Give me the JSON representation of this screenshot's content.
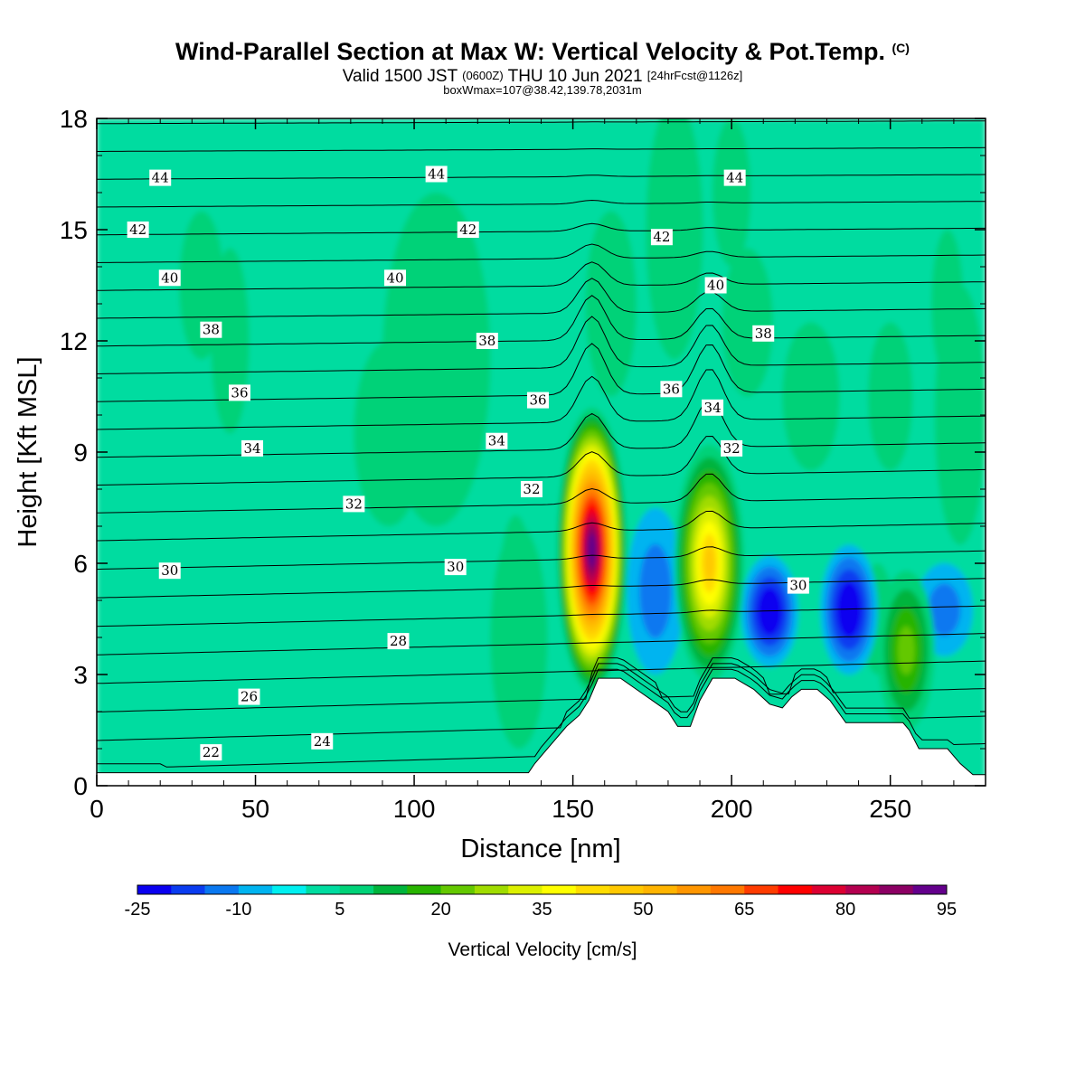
{
  "titles": {
    "main": "Wind-Parallel Section at Max W: Vertical Velocity & Pot.Temp.",
    "main_mark": "(C)",
    "valid_a": "Valid 1500 JST",
    "valid_b": "(0600Z)",
    "valid_c": "THU 10 Jun 2021",
    "valid_d": "[24hrFcst@1126z]",
    "box": "boxWmax=107@38.42,139.78,2031m"
  },
  "chart_data": {
    "type": "heatmap",
    "xlabel": "Distance [nm]",
    "ylabel": "Height [Kft MSL]",
    "xlim": [
      0,
      280
    ],
    "ylim": [
      0,
      18
    ],
    "x_ticks": [
      "0",
      "50",
      "100",
      "150",
      "200",
      "250"
    ],
    "y_ticks": [
      "0",
      "3",
      "6",
      "9",
      "12",
      "15",
      "18"
    ],
    "colorbar": {
      "label": "Vertical Velocity [cm/s]",
      "tick_labels": [
        "-25",
        "-10",
        "5",
        "20",
        "35",
        "50",
        "65",
        "80",
        "95"
      ],
      "levels": [
        -25,
        -20,
        -15,
        -10,
        -5,
        0,
        5,
        10,
        15,
        20,
        25,
        30,
        35,
        40,
        45,
        50,
        55,
        60,
        65,
        70,
        75,
        80,
        85,
        90,
        95
      ],
      "colors": [
        "#0a00f0",
        "#0a3cf0",
        "#0a78f0",
        "#00b4f0",
        "#00f0f0",
        "#00dca0",
        "#00d278",
        "#00b43c",
        "#28b400",
        "#64c800",
        "#a0dc00",
        "#dcf000",
        "#ffff00",
        "#ffdc00",
        "#ffc800",
        "#ffb400",
        "#ff9600",
        "#ff7800",
        "#ff3c00",
        "#ff0000",
        "#dc0032",
        "#b40050",
        "#8c0064",
        "#64008c"
      ]
    },
    "updrafts": [
      {
        "x": 156,
        "base_kft": 2.5,
        "top_kft": 10.2,
        "w_max": 95
      },
      {
        "x": 193,
        "base_kft": 2.8,
        "top_kft": 9.2,
        "w_max": 45
      }
    ],
    "downdrafts": [
      {
        "x": 176,
        "base_kft": 3.0,
        "top_kft": 7.5,
        "w_min": -12
      },
      {
        "x": 212,
        "base_kft": 3.2,
        "top_kft": 6.2,
        "w_min": -25
      },
      {
        "x": 237,
        "base_kft": 3.0,
        "top_kft": 6.5,
        "w_min": -25
      },
      {
        "x": 267,
        "base_kft": 3.5,
        "top_kft": 6.0,
        "w_min": -12
      }
    ],
    "weak_updrafts": [
      {
        "x": 255,
        "base_kft": 1.5,
        "top_kft": 5.8,
        "w_max": 20
      },
      {
        "x": 133,
        "base_kft": 1.0,
        "top_kft": 7.0,
        "w_max": 8
      }
    ],
    "terrain": [
      [
        0,
        0.35
      ],
      [
        136,
        0.35
      ],
      [
        138,
        0.6
      ],
      [
        141,
        0.9
      ],
      [
        144,
        1.2
      ],
      [
        148,
        1.6
      ],
      [
        152,
        1.9
      ],
      [
        155,
        2.3
      ],
      [
        158,
        2.9
      ],
      [
        165,
        2.9
      ],
      [
        170,
        2.6
      ],
      [
        175,
        2.3
      ],
      [
        180,
        2.0
      ],
      [
        183,
        1.6
      ],
      [
        187,
        1.6
      ],
      [
        190,
        2.3
      ],
      [
        194,
        2.9
      ],
      [
        201,
        2.9
      ],
      [
        207,
        2.6
      ],
      [
        212,
        2.2
      ],
      [
        216,
        2.1
      ],
      [
        219,
        2.4
      ],
      [
        222,
        2.6
      ],
      [
        227,
        2.6
      ],
      [
        231,
        2.3
      ],
      [
        236,
        1.7
      ],
      [
        254,
        1.7
      ],
      [
        256,
        1.5
      ],
      [
        259,
        1.0
      ],
      [
        268,
        1.0
      ],
      [
        272,
        0.6
      ],
      [
        276,
        0.3
      ],
      [
        280,
        0.3
      ]
    ],
    "theta_contours": {
      "levels": [
        22,
        23,
        24,
        25,
        26,
        27,
        28,
        29,
        30,
        31,
        32,
        33,
        34,
        35,
        36,
        37,
        38,
        39,
        40,
        41,
        42,
        43,
        44,
        45
      ],
      "labels": [
        {
          "text": "22",
          "x": 36,
          "y": 0.9
        },
        {
          "text": "24",
          "x": 71,
          "y": 1.2
        },
        {
          "text": "26",
          "x": 48,
          "y": 2.4
        },
        {
          "text": "28",
          "x": 95,
          "y": 3.9
        },
        {
          "text": "30",
          "x": 23,
          "y": 5.8
        },
        {
          "text": "30",
          "x": 113,
          "y": 5.9
        },
        {
          "text": "30",
          "x": 221,
          "y": 5.4
        },
        {
          "text": "32",
          "x": 81,
          "y": 7.6
        },
        {
          "text": "32",
          "x": 137,
          "y": 8.0
        },
        {
          "text": "32",
          "x": 200,
          "y": 9.1
        },
        {
          "text": "34",
          "x": 49,
          "y": 9.1
        },
        {
          "text": "34",
          "x": 126,
          "y": 9.3
        },
        {
          "text": "34",
          "x": 194,
          "y": 10.2
        },
        {
          "text": "36",
          "x": 45,
          "y": 10.6
        },
        {
          "text": "36",
          "x": 139,
          "y": 10.4
        },
        {
          "text": "36",
          "x": 181,
          "y": 10.7
        },
        {
          "text": "38",
          "x": 36,
          "y": 12.3
        },
        {
          "text": "38",
          "x": 123,
          "y": 12.0
        },
        {
          "text": "38",
          "x": 210,
          "y": 12.2
        },
        {
          "text": "40",
          "x": 23,
          "y": 13.7
        },
        {
          "text": "40",
          "x": 94,
          "y": 13.7
        },
        {
          "text": "40",
          "x": 195,
          "y": 13.5
        },
        {
          "text": "42",
          "x": 13,
          "y": 15.0
        },
        {
          "text": "42",
          "x": 117,
          "y": 15.0
        },
        {
          "text": "42",
          "x": 178,
          "y": 14.8
        },
        {
          "text": "44",
          "x": 20,
          "y": 16.4
        },
        {
          "text": "44",
          "x": 107,
          "y": 16.5
        },
        {
          "text": "44",
          "x": 201,
          "y": 16.4
        }
      ]
    }
  }
}
